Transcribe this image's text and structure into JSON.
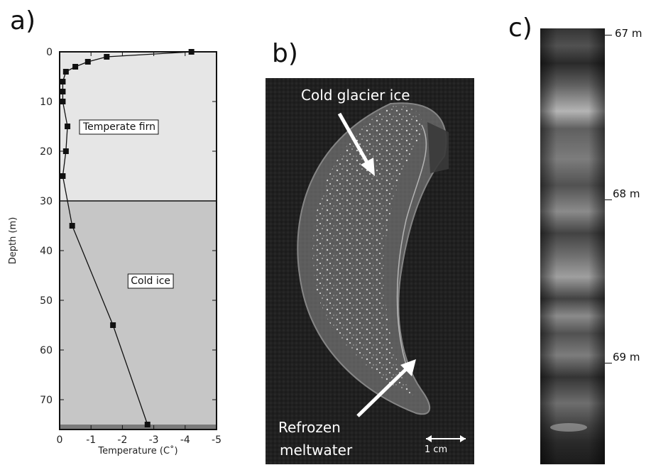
{
  "panels": {
    "a": {
      "letter": "a)"
    },
    "b": {
      "letter": "b)",
      "label_top": "Cold glacier ice",
      "label_bottom_line1": "Refrozen",
      "label_bottom_line2": "meltwater",
      "scale_label": "1 cm"
    },
    "c": {
      "letter": "c)",
      "depth_markers": [
        "67 m",
        "68 m",
        "69 m"
      ]
    }
  },
  "colors": {
    "temperate_zone": "#e6e6e6",
    "cold_zone": "#c6c6c6",
    "bottom_band": "#7a7a7a",
    "line": "#111111",
    "marker": "#111111",
    "photo_background": "#1f1f1f"
  },
  "chart_data": {
    "type": "line",
    "xlabel": "Temperature (C˚)",
    "ylabel": "Depth (m)",
    "xlim": [
      0,
      -5
    ],
    "ylim": [
      0,
      76
    ],
    "x_ticks": [
      "0",
      "-1",
      "-2",
      "-3",
      "-4",
      "-5"
    ],
    "x_tick_values": [
      0,
      -1,
      -2,
      -3,
      -4,
      -5
    ],
    "y_ticks": [
      "0",
      "10",
      "20",
      "30",
      "40",
      "50",
      "60",
      "70"
    ],
    "y_tick_values": [
      0,
      10,
      20,
      30,
      40,
      50,
      60,
      70
    ],
    "series": [
      {
        "points": [
          {
            "x": -4.2,
            "y": 0
          },
          {
            "x": -1.5,
            "y": 1
          },
          {
            "x": -0.9,
            "y": 2
          },
          {
            "x": -0.5,
            "y": 3
          },
          {
            "x": -0.2,
            "y": 4
          },
          {
            "x": -0.1,
            "y": 6
          },
          {
            "x": -0.1,
            "y": 8
          },
          {
            "x": -0.1,
            "y": 10
          },
          {
            "x": -0.25,
            "y": 15
          },
          {
            "x": -0.2,
            "y": 20
          },
          {
            "x": -0.1,
            "y": 25
          },
          {
            "x": -0.4,
            "y": 35
          },
          {
            "x": -1.7,
            "y": 55
          },
          {
            "x": -2.8,
            "y": 75
          }
        ]
      }
    ],
    "zones": [
      {
        "label": "Temperate firn",
        "from": 0,
        "to": 30
      },
      {
        "label": "Cold ice",
        "from": 30,
        "to": 75
      },
      {
        "label": "",
        "from": 75,
        "to": 76
      }
    ],
    "grid": false
  }
}
